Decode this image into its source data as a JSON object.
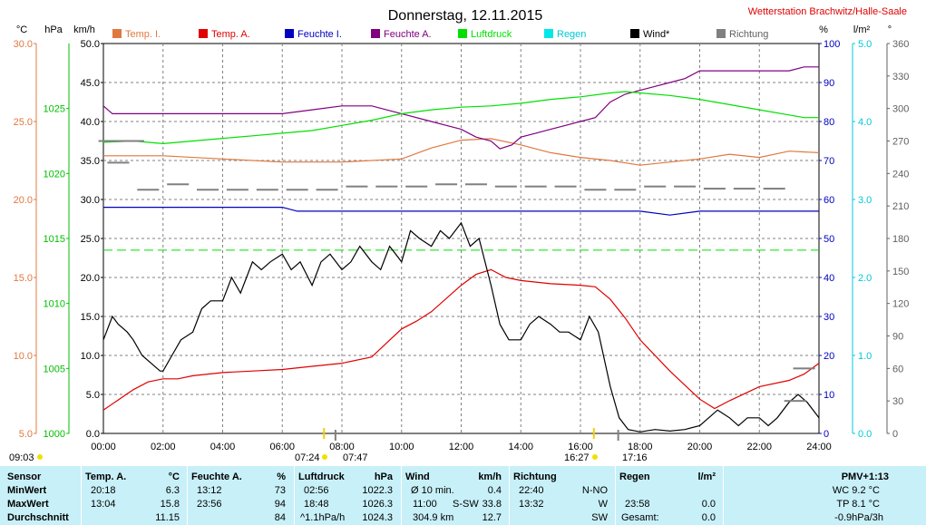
{
  "header": {
    "title": "Donnerstag, 12.11.2015",
    "station": "Wetterstation Brachwitz/Halle-Saale"
  },
  "colors": {
    "temp_in": "#e07840",
    "temp_out": "#e00000",
    "hum_in": "#0000c0",
    "hum_out": "#800080",
    "pressure": "#00e000",
    "rain": "#00e8e8",
    "wind": "#000000",
    "direction": "#808080",
    "grid": "#808080"
  },
  "chart_data": {
    "type": "line",
    "title": "Donnerstag, 12.11.2015",
    "x_range_hours": [
      0,
      24
    ],
    "x_ticks": [
      "00:00",
      "02:00",
      "04:00",
      "06:00",
      "08:00",
      "10:00",
      "12:00",
      "14:00",
      "16:00",
      "18:00",
      "20:00",
      "22:00",
      "24:00"
    ],
    "grid": true,
    "legend_position": "top",
    "legend": [
      {
        "label": "Temp. I.",
        "color_key": "temp_in"
      },
      {
        "label": "Temp. A.",
        "color_key": "temp_out"
      },
      {
        "label": "Feuchte I.",
        "color_key": "hum_in"
      },
      {
        "label": "Feuchte A.",
        "color_key": "hum_out"
      },
      {
        "label": "Luftdruck",
        "color_key": "pressure"
      },
      {
        "label": "Regen",
        "color_key": "rain"
      },
      {
        "label": "Wind*",
        "color_key": "wind"
      },
      {
        "label": "Richtung",
        "color_key": "direction"
      }
    ],
    "axes": {
      "temp": {
        "unit": "°C",
        "range": [
          5,
          30
        ],
        "ticks": [
          "30.0",
          "25.0",
          "20.0",
          "15.0",
          "10.0",
          "5.0"
        ]
      },
      "pressure": {
        "unit": "hPa",
        "range": [
          1000,
          1030
        ],
        "ticks": [
          "1025",
          "1020",
          "1015",
          "1010",
          "1005",
          "1000"
        ]
      },
      "wind": {
        "unit": "km/h",
        "range": [
          0,
          50
        ],
        "ticks": [
          "50.0",
          "45.0",
          "40.0",
          "35.0",
          "30.0",
          "25.0",
          "20.0",
          "15.0",
          "10.0",
          "5.0",
          "0.0"
        ]
      },
      "humidity": {
        "unit": "%",
        "range": [
          0,
          100
        ],
        "ticks": [
          "100",
          "90",
          "80",
          "70",
          "60",
          "50",
          "40",
          "30",
          "20",
          "10",
          "0"
        ]
      },
      "rain": {
        "unit": "l/m²",
        "range": [
          0,
          5
        ],
        "ticks": [
          "5.0",
          "4.0",
          "3.0",
          "2.0",
          "1.0",
          "0.0"
        ]
      },
      "direction": {
        "unit": "°",
        "range": [
          0,
          360
        ],
        "ticks": [
          "360",
          "330",
          "300",
          "270",
          "240",
          "210",
          "180",
          "150",
          "120",
          "90",
          "60",
          "30",
          "0"
        ]
      }
    },
    "series": [
      {
        "name": "Temp. A.",
        "axis": "temp",
        "color_key": "temp_out",
        "x": [
          0,
          1,
          1.5,
          2,
          2.5,
          3,
          4,
          5,
          6,
          7,
          8,
          9,
          9.5,
          10,
          10.5,
          11,
          12,
          12.5,
          13,
          13.5,
          14,
          15,
          16,
          16.5,
          17,
          17.5,
          18,
          19,
          20,
          20.5,
          21,
          22,
          23,
          23.5,
          24
        ],
        "y": [
          6.5,
          7.8,
          8.3,
          8.5,
          8.5,
          8.7,
          8.9,
          9.0,
          9.1,
          9.3,
          9.5,
          9.9,
          10.8,
          11.7,
          12.2,
          12.8,
          14.5,
          15.2,
          15.5,
          15.0,
          14.8,
          14.6,
          14.5,
          14.4,
          13.6,
          12.4,
          11.0,
          9.0,
          7.2,
          6.6,
          7.1,
          8.0,
          8.4,
          8.8,
          9.5
        ]
      },
      {
        "name": "Temp. I.",
        "axis": "temp",
        "color_key": "temp_in",
        "x": [
          0,
          2,
          4,
          6,
          8,
          10,
          11,
          12,
          13,
          14,
          15,
          16,
          17,
          18,
          19,
          20,
          21,
          22,
          23,
          24
        ],
        "y": [
          22.8,
          22.8,
          22.6,
          22.4,
          22.4,
          22.6,
          23.3,
          23.8,
          23.9,
          23.5,
          23.0,
          22.7,
          22.5,
          22.2,
          22.4,
          22.6,
          22.9,
          22.7,
          23.1,
          23.0
        ]
      },
      {
        "name": "Feuchte I.",
        "axis": "humidity",
        "color_key": "hum_in",
        "x": [
          0,
          3,
          6,
          6.5,
          8,
          10,
          12,
          14,
          16,
          18,
          19,
          20,
          21,
          22,
          23,
          24
        ],
        "y": [
          58,
          58,
          58,
          57,
          57,
          57,
          57,
          57,
          57,
          57,
          56,
          57,
          57,
          57,
          57,
          57
        ]
      },
      {
        "name": "Feuchte A.",
        "axis": "humidity",
        "color_key": "hum_out",
        "x": [
          0,
          0.3,
          0.6,
          1,
          2,
          3,
          4,
          5,
          6,
          7,
          8,
          9,
          10,
          11,
          11.5,
          12,
          12.5,
          13,
          13.3,
          13.7,
          14,
          14.5,
          15,
          15.5,
          16,
          16.5,
          17,
          17.5,
          18,
          18.5,
          19,
          19.5,
          20,
          21,
          22,
          23,
          23.5,
          24
        ],
        "y": [
          84,
          82,
          82,
          82,
          82,
          82,
          82,
          82,
          82,
          83,
          84,
          84,
          82,
          80,
          79,
          78,
          76,
          75,
          73,
          74,
          76,
          77,
          78,
          79,
          80,
          81,
          85,
          87,
          88,
          89,
          90,
          91,
          93,
          93,
          93,
          93,
          94,
          94
        ]
      },
      {
        "name": "Luftdruck",
        "axis": "pressure",
        "color_key": "pressure",
        "x": [
          0,
          1,
          2,
          3,
          4,
          5,
          6,
          7,
          8,
          9,
          10,
          11,
          12,
          13,
          14,
          15,
          16,
          17,
          17.5,
          18,
          19,
          20,
          21,
          22,
          23,
          23.5,
          24
        ],
        "y": [
          1022.4,
          1022.5,
          1022.3,
          1022.5,
          1022.7,
          1022.9,
          1023.1,
          1023.3,
          1023.7,
          1024.1,
          1024.6,
          1024.9,
          1025.1,
          1025.2,
          1025.4,
          1025.7,
          1025.9,
          1026.2,
          1026.3,
          1026.2,
          1026.0,
          1025.7,
          1025.3,
          1024.9,
          1024.5,
          1024.3,
          1024.3
        ]
      },
      {
        "name": "Wind*",
        "axis": "wind",
        "color_key": "wind",
        "x": [
          0,
          0.3,
          0.5,
          0.8,
          1,
          1.3,
          1.6,
          1.9,
          2,
          2.3,
          2.6,
          3,
          3.3,
          3.6,
          4,
          4.3,
          4.6,
          5,
          5.3,
          5.6,
          6,
          6.3,
          6.6,
          7,
          7.3,
          7.6,
          8,
          8.3,
          8.6,
          9,
          9.3,
          9.6,
          10,
          10.3,
          10.6,
          11,
          11.3,
          11.6,
          12,
          12.3,
          12.6,
          13,
          13.3,
          13.6,
          14,
          14.3,
          14.6,
          15,
          15.3,
          15.6,
          16,
          16.3,
          16.6,
          17,
          17.3,
          17.6,
          18,
          18.5,
          19,
          19.5,
          20,
          20.3,
          20.6,
          21,
          21.3,
          21.6,
          22,
          22.3,
          22.6,
          23,
          23.3,
          23.6,
          24
        ],
        "y": [
          12,
          15,
          14,
          13,
          12,
          10,
          9,
          8,
          8,
          10,
          12,
          13,
          16,
          17,
          17,
          20,
          18,
          22,
          21,
          22,
          23,
          21,
          22,
          19,
          22,
          23,
          21,
          22,
          24,
          22,
          21,
          24,
          22,
          26,
          25,
          24,
          26,
          25,
          27,
          24,
          25,
          19,
          14,
          12,
          12,
          14,
          15,
          14,
          13,
          13,
          12,
          15,
          13,
          6,
          2,
          0.5,
          0.2,
          0.5,
          0.3,
          0.5,
          1,
          2,
          3,
          2,
          1,
          2,
          2,
          1,
          2,
          4,
          5,
          4,
          2
        ]
      },
      {
        "name": "Richtung",
        "axis": "direction",
        "color_key": "direction",
        "x": [
          0.2,
          0.6,
          1,
          0.5,
          1.5,
          2.5,
          3.5,
          4.5,
          5.5,
          6.5,
          7.5,
          8.5,
          9.5,
          10.5,
          11.5,
          12.5,
          13.5,
          14.5,
          15.5,
          16.5,
          17.5,
          18.5,
          19.5,
          20.5,
          21.5,
          22.5,
          23.2,
          23.5
        ],
        "y": [
          270,
          270,
          270,
          250,
          225,
          230,
          225,
          225,
          225,
          225,
          225,
          228,
          228,
          228,
          230,
          230,
          228,
          228,
          228,
          225,
          225,
          228,
          228,
          226,
          226,
          226,
          30,
          60
        ]
      }
    ],
    "threshold_line": {
      "axis": "wind",
      "value": 23.5,
      "color_key": "pressure"
    }
  },
  "sun": {
    "left_time": "09:03",
    "sunrise": "07:24",
    "sunset": "16:27",
    "marker1": "07:47",
    "marker2": "17:16"
  },
  "table": {
    "labels": [
      "Sensor",
      "MinWert",
      "MaxWert",
      "Durchschnitt"
    ],
    "temp": {
      "head": "Temp. A.",
      "unit": "°C",
      "min_time": "20:18",
      "min": "6.3",
      "max_time": "13:04",
      "max": "15.8",
      "avg": "11.15"
    },
    "hum": {
      "head": "Feuchte A.",
      "unit": "%",
      "min_time": "13:12",
      "min": "73",
      "max_time": "23:56",
      "max": "94",
      "avg": "84"
    },
    "press": {
      "head": "Luftdruck",
      "unit": "hPa",
      "min_time": "02:56",
      "min": "1022.3",
      "max_time": "18:48",
      "max": "1026.3",
      "avg_label": "^1.1hPa/h",
      "avg": "1024.3"
    },
    "wind": {
      "head": "Wind",
      "unit": "km/h",
      "min_label": "Ø 10 min.",
      "min": "0.4",
      "max_time": "11:00",
      "max_dir": "S-SW",
      "max": "33.8",
      "avg_label": "304.9 km",
      "avg": "12.7"
    },
    "dir": {
      "head": "Richtung",
      "min_time": "22:40",
      "min": "N-NO",
      "max_time": "13:32",
      "max": "W",
      "avg": "SW"
    },
    "rain": {
      "head": "Regen",
      "unit": "l/m²",
      "max_time": "23:58",
      "max": "0.0",
      "total_label": "Gesamt:",
      "total": "0.0"
    },
    "pmv": {
      "head": "PMV+1:13",
      "wc": "WC 9.2 °C",
      "tp": "TP 8.1 °C",
      "trend": "-0.9hPa/3h"
    }
  }
}
